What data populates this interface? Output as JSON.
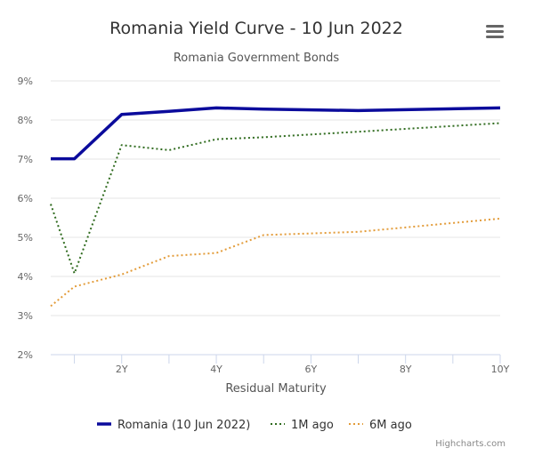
{
  "chart_data": {
    "type": "line",
    "title": "Romania Yield Curve - 10 Jun 2022",
    "subtitle": "Romania Government Bonds",
    "xlabel": "Residual Maturity",
    "ylabel": "",
    "x_tick_labels": [
      "2Y",
      "4Y",
      "6Y",
      "8Y",
      "10Y"
    ],
    "x_ticks": [
      2,
      4,
      6,
      8,
      10
    ],
    "xlim": [
      0.5,
      10
    ],
    "y_tick_labels": [
      "2%",
      "3%",
      "4%",
      "5%",
      "6%",
      "7%",
      "8%",
      "9%"
    ],
    "y_ticks": [
      2,
      3,
      4,
      5,
      6,
      7,
      8,
      9
    ],
    "ylim": [
      2,
      9
    ],
    "grid": true,
    "legend_position": "bottom",
    "series": [
      {
        "name": "Romania (10 Jun 2022)",
        "color": "#0b0b9c",
        "style": "solid",
        "points": [
          [
            0.5,
            7.01
          ],
          [
            1,
            7.01
          ],
          [
            2,
            8.14
          ],
          [
            3,
            8.22
          ],
          [
            4,
            8.31
          ],
          [
            5,
            8.28
          ],
          [
            7,
            8.24
          ],
          [
            10,
            8.31
          ]
        ]
      },
      {
        "name": "1M ago",
        "color": "#2f6b1e",
        "style": "dotted",
        "points": [
          [
            0.5,
            5.85
          ],
          [
            1,
            4.08
          ],
          [
            2,
            7.36
          ],
          [
            3,
            7.23
          ],
          [
            4,
            7.51
          ],
          [
            5,
            7.56
          ],
          [
            7,
            7.7
          ],
          [
            10,
            7.92
          ]
        ]
      },
      {
        "name": "6M ago",
        "color": "#e39c3a",
        "style": "dotted",
        "points": [
          [
            0.5,
            3.24
          ],
          [
            1,
            3.74
          ],
          [
            2,
            4.05
          ],
          [
            3,
            4.52
          ],
          [
            4,
            4.6
          ],
          [
            5,
            5.06
          ],
          [
            7,
            5.14
          ],
          [
            10,
            5.48
          ]
        ]
      }
    ]
  },
  "credits": "Highcharts.com",
  "menu_icon": "hamburger-menu-icon"
}
